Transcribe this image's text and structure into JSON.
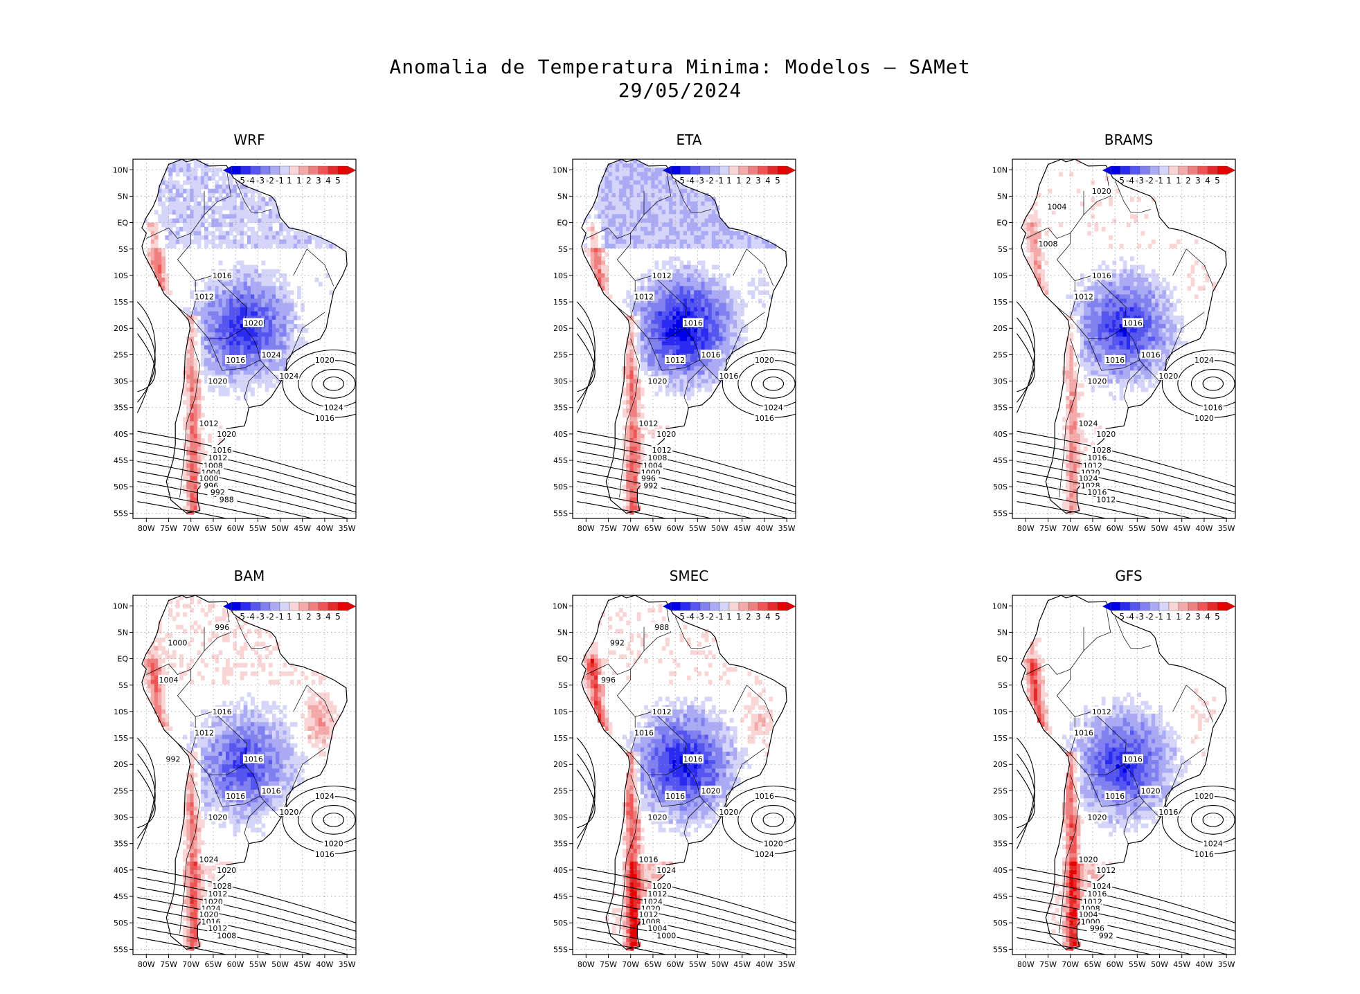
{
  "title_line1": "Anomalia de Temperatura Minima: Modelos – SAMet",
  "title_line2": "29/05/2024",
  "colors": {
    "neg": [
      "#0000e6",
      "#2a2af0",
      "#5555f0",
      "#8080f0",
      "#aaaaf5",
      "#d5d5fa"
    ],
    "pos": [
      "#fad5d5",
      "#f5aaaa",
      "#f08080",
      "#f05555",
      "#e62a2a",
      "#e60000"
    ],
    "blue_core": "#0a0ae6",
    "red_core": "#e61818"
  },
  "colorbar_labels": [
    "-5",
    "-4",
    "-3",
    "-2",
    "-1",
    "1",
    "1",
    "2",
    "3",
    "4",
    "5"
  ],
  "lat_labels": [
    "10N",
    "5N",
    "EQ",
    "5S",
    "10S",
    "15S",
    "20S",
    "25S",
    "30S",
    "35S",
    "40S",
    "45S",
    "50S",
    "55S"
  ],
  "lon_labels": [
    "80W",
    "75W",
    "70W",
    "65W",
    "60W",
    "55W",
    "50W",
    "45W",
    "40W",
    "35W"
  ],
  "panels": [
    {
      "name": "WRF",
      "contours": [
        "1012",
        "1016",
        "1020",
        "1016",
        "1020",
        "1024",
        "1024",
        "1020",
        "1024",
        "1016",
        "1012",
        "1020",
        "1016",
        "1012",
        "1008",
        "1004",
        "1000",
        "996",
        "992",
        "988"
      ]
    },
    {
      "name": "ETA",
      "contours": [
        "1012",
        "1012",
        "1016",
        "1012",
        "1020",
        "1016",
        "1016",
        "1020",
        "1024",
        "1016",
        "1012",
        "1020",
        "1012",
        "1008",
        "1004",
        "1000",
        "996",
        "992"
      ]
    },
    {
      "name": "BRAMS",
      "contours": [
        "1012",
        "1016",
        "1016",
        "1016",
        "1020",
        "1016",
        "1020",
        "1024",
        "1016",
        "1020",
        "1024",
        "1020",
        "1028",
        "1016",
        "1012",
        "1020",
        "1024",
        "1028",
        "1016",
        "1012",
        "1008",
        "1004",
        "1020"
      ]
    },
    {
      "name": "BAM",
      "contours": [
        "1012",
        "1016",
        "1016",
        "1016",
        "1020",
        "1016",
        "1020",
        "1024",
        "1020",
        "1016",
        "1024",
        "1020",
        "1028",
        "1012",
        "1020",
        "1024",
        "1020",
        "1016",
        "1012",
        "1008",
        "1004",
        "1000",
        "996",
        "992"
      ]
    },
    {
      "name": "SMEC",
      "contours": [
        "1016",
        "1012",
        "1016",
        "1016",
        "1020",
        "1020",
        "1020",
        "1016",
        "1020",
        "1024",
        "1016",
        "1024",
        "1020",
        "1012",
        "1024",
        "1020",
        "1012",
        "1008",
        "1004",
        "1000",
        "996",
        "992",
        "988"
      ]
    },
    {
      "name": "GFS",
      "contours": [
        "1016",
        "1012",
        "1016",
        "1016",
        "1020",
        "1020",
        "1016",
        "1020",
        "1024",
        "1016",
        "1020",
        "1012",
        "1024",
        "1016",
        "1012",
        "1008",
        "1004",
        "1000",
        "996",
        "992"
      ]
    }
  ]
}
